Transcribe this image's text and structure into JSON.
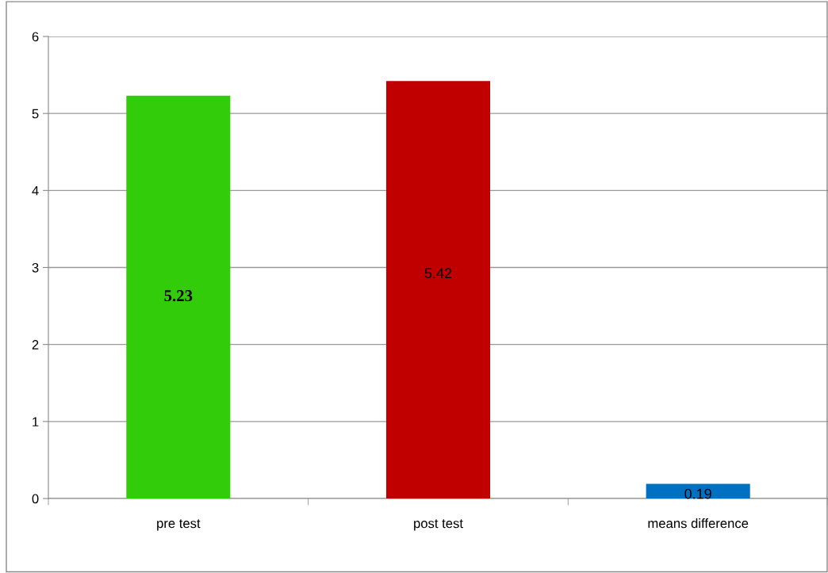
{
  "chart_data": {
    "type": "bar",
    "categories": [
      "pre test",
      "post test",
      "means difference"
    ],
    "values": [
      5.23,
      5.42,
      0.19
    ],
    "colors": [
      "#33cc0a",
      "#c00000",
      "#0070c0"
    ],
    "ylim": [
      0,
      6
    ],
    "yticks": [
      0,
      1,
      2,
      3,
      4,
      5,
      6
    ],
    "grid": "y",
    "data_labels": true
  }
}
